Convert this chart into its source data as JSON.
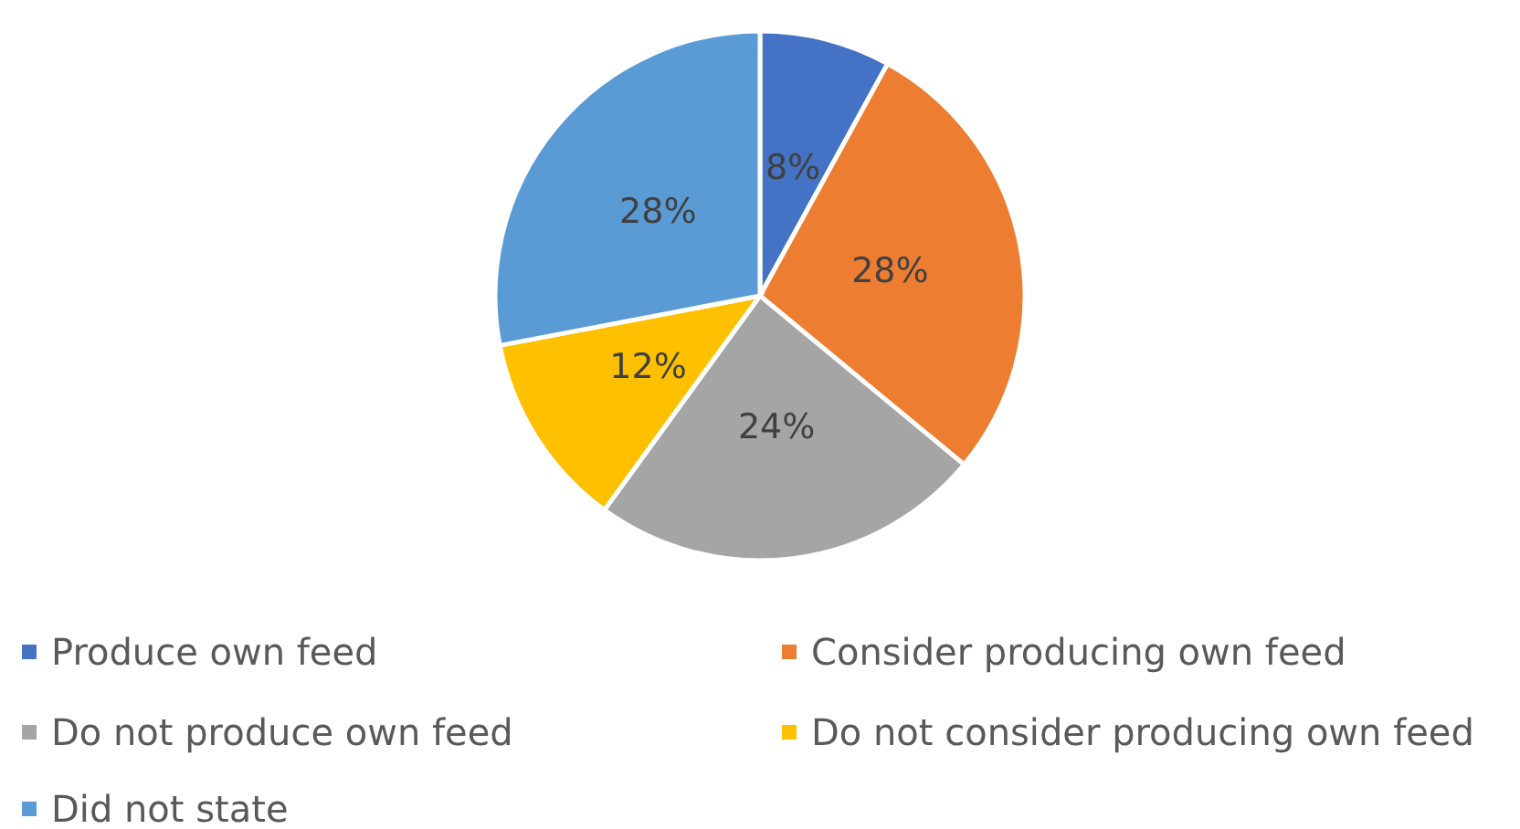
{
  "chart_data": {
    "type": "pie",
    "categories": [
      "Produce own feed",
      "Consider producing own feed",
      "Do not produce own feed",
      "Do not consider producing own feed",
      "Did not state"
    ],
    "values": [
      8,
      28,
      24,
      12,
      28
    ],
    "colors": [
      "#4472c4",
      "#ed7d31",
      "#a5a5a5",
      "#ffc000",
      "#5b9bd5"
    ],
    "value_labels": [
      "8%",
      "28%",
      "24%",
      "12%",
      "28%"
    ],
    "legend": "bottom"
  }
}
